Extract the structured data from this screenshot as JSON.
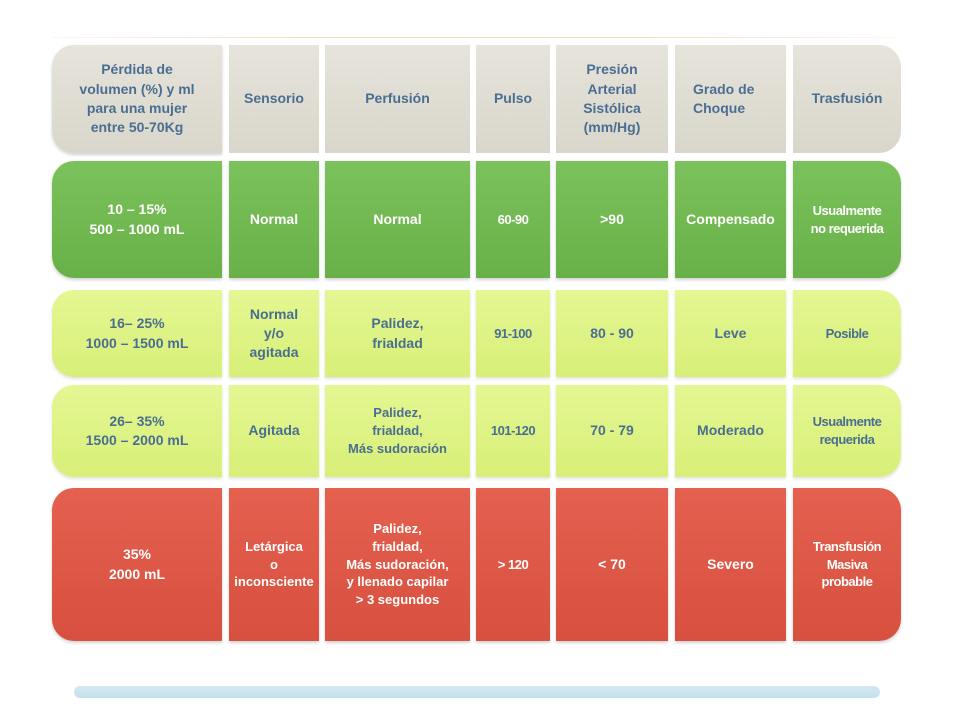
{
  "header": {
    "volume": [
      "Pérdida de",
      "volumen (%) y ml",
      "para una mujer",
      "entre 50-70Kg"
    ],
    "sensorio": "Sensorio",
    "perfusion": "Perfusión",
    "pulso": "Pulso",
    "presion": [
      "Presión",
      "Arterial",
      "Sistólica",
      "(mm/Hg)"
    ],
    "grado": [
      "Grado de",
      "Choque"
    ],
    "trasfusion": "Trasfusión"
  },
  "rows": [
    {
      "volume": [
        "10 – 15%",
        "500 – 1000 mL"
      ],
      "sensorio": [
        "Normal"
      ],
      "perfusion": [
        "Normal"
      ],
      "pulso": "60-90",
      "presion": ">90",
      "grado": "Compensado",
      "trasfusion": [
        "Usualmente",
        "no requerida"
      ]
    },
    {
      "volume": [
        "16– 25%",
        "1000 – 1500 mL"
      ],
      "sensorio": [
        "Normal",
        "y/o",
        "agitada"
      ],
      "perfusion": [
        "Palidez,",
        "frialdad"
      ],
      "pulso": "91-100",
      "presion": "80 - 90",
      "grado": "Leve",
      "trasfusion": [
        "Posible"
      ]
    },
    {
      "volume": [
        "26– 35%",
        "1500 – 2000 mL"
      ],
      "sensorio": [
        "Agitada"
      ],
      "perfusion": [
        "Palidez,",
        "frialdad,",
        "Más sudoración"
      ],
      "pulso": "101-120",
      "presion": "70 - 79",
      "grado": "Moderado",
      "trasfusion": [
        "Usualmente",
        "requerida"
      ]
    },
    {
      "volume": [
        "35%",
        "2000 mL"
      ],
      "sensorio": [
        "Letárgica",
        "o",
        "inconsciente"
      ],
      "perfusion": [
        "Palidez,",
        "frialdad,",
        "Más sudoración,",
        "y llenado capilar",
        "> 3 segundos"
      ],
      "pulso": "> 120",
      "presion": "< 70",
      "grado": "Severo",
      "trasfusion": [
        "Transfusión",
        "Masiva",
        "probable"
      ]
    }
  ],
  "colors": {
    "header_bg": "#dedbd1",
    "header_text": "#4a6e92",
    "green": "#72b952",
    "yellow": "#def487",
    "red": "#de5848"
  }
}
